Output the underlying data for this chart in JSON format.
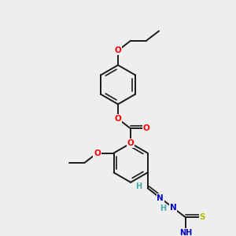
{
  "bg_color": "#eeeeee",
  "bond_color": "#1a1a1a",
  "bond_width": 1.4,
  "atom_colors": {
    "O": "#ff0000",
    "N": "#0000cc",
    "S": "#b8b800",
    "H": "#44aaaa",
    "C": "#1a1a1a"
  },
  "font_size": 7.5,
  "fig_size": [
    3.0,
    3.0
  ],
  "dpi": 100
}
